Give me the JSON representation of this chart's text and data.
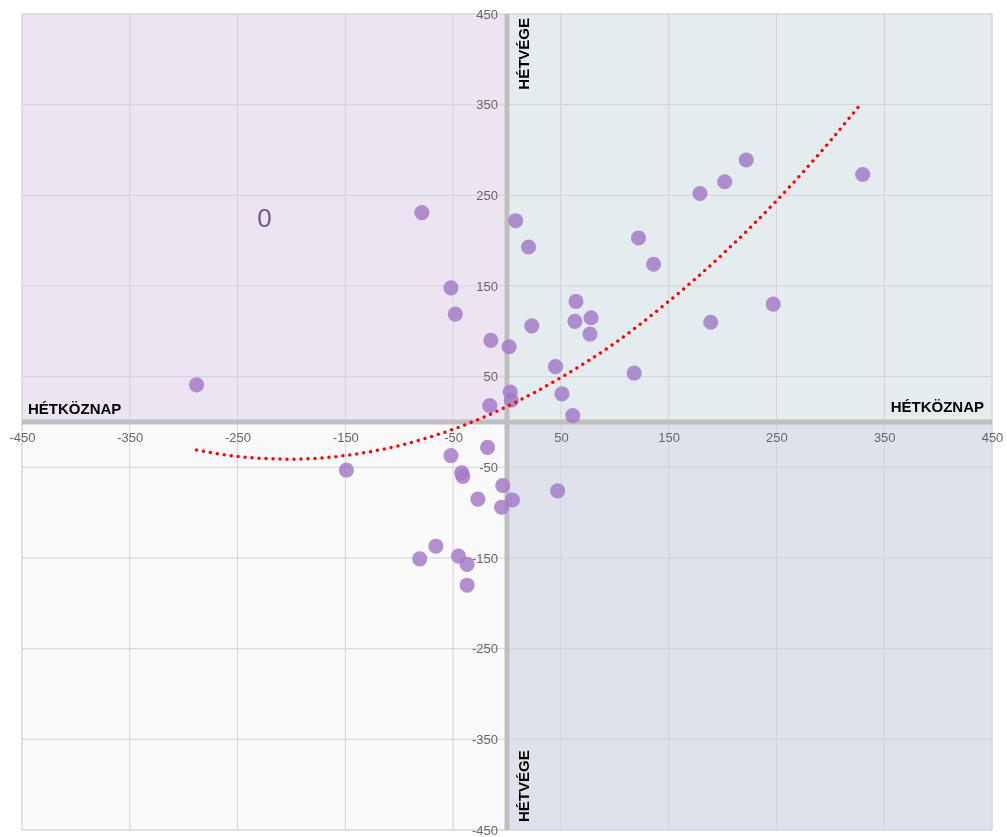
{
  "chart_data": {
    "type": "scatter",
    "xlim": [
      -450,
      450
    ],
    "ylim": [
      -450,
      450
    ],
    "xticks": [
      -450,
      -350,
      -250,
      -150,
      -50,
      50,
      150,
      250,
      350,
      450
    ],
    "yticks": [
      -450,
      -350,
      -250,
      -150,
      -50,
      50,
      150,
      250,
      350,
      450
    ],
    "grid": true,
    "marker": "circle",
    "annotations": [
      "HÉTKÖZNAP",
      "HÉTKÖZNAP",
      "HÉTVÉGE",
      "HÉTVÉGE",
      "0"
    ],
    "series": [
      {
        "color": "#a47cc8",
        "x": [
          -288,
          -149,
          -79,
          -52,
          -48,
          -15,
          2,
          8,
          20,
          23,
          -16,
          3,
          4,
          45,
          51,
          61,
          64,
          63,
          78,
          77,
          118,
          122,
          136,
          179,
          189,
          202,
          222,
          247,
          330,
          -18,
          -52,
          -42,
          -41,
          -4,
          5,
          -27,
          -5,
          47,
          -66,
          -81,
          -45,
          -37,
          -37
        ],
        "values": [
          41,
          -53,
          231,
          148,
          119,
          90,
          83,
          222,
          193,
          106,
          18,
          33,
          24,
          61,
          31,
          7,
          133,
          111,
          115,
          97,
          54,
          203,
          174,
          252,
          110,
          265,
          289,
          130,
          273,
          -28,
          -37,
          -56,
          -60,
          -70,
          -86,
          -85,
          -94,
          -76,
          -137,
          -151,
          -148,
          -157,
          -180
        ]
      },
      {
        "type": "line",
        "color": "#ff0000",
        "line_style": "dotted",
        "marker": "none",
        "x": [
          -288,
          -250,
          -200,
          -150,
          -100,
          -50,
          0,
          50,
          100,
          150,
          200,
          250,
          300,
          327
        ],
        "values": [
          -31,
          -38,
          -41,
          -37,
          -26,
          -8,
          17,
          49,
          87,
          133,
          185,
          244,
          310,
          349
        ]
      }
    ]
  }
}
